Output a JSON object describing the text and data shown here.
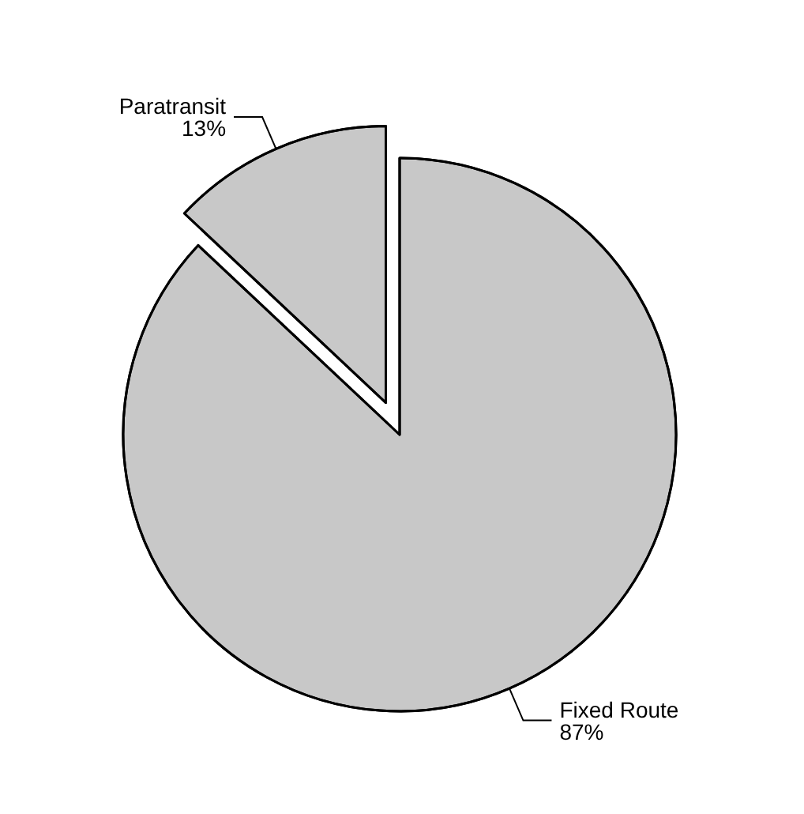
{
  "chart_data": {
    "type": "pie",
    "categories": [
      "Fixed Route",
      "Paratransit"
    ],
    "values": [
      87,
      13
    ],
    "value_labels": [
      "87%",
      "13%"
    ],
    "colors": [
      "#c8c8c8",
      "#c8c8c8"
    ],
    "legend": false
  }
}
